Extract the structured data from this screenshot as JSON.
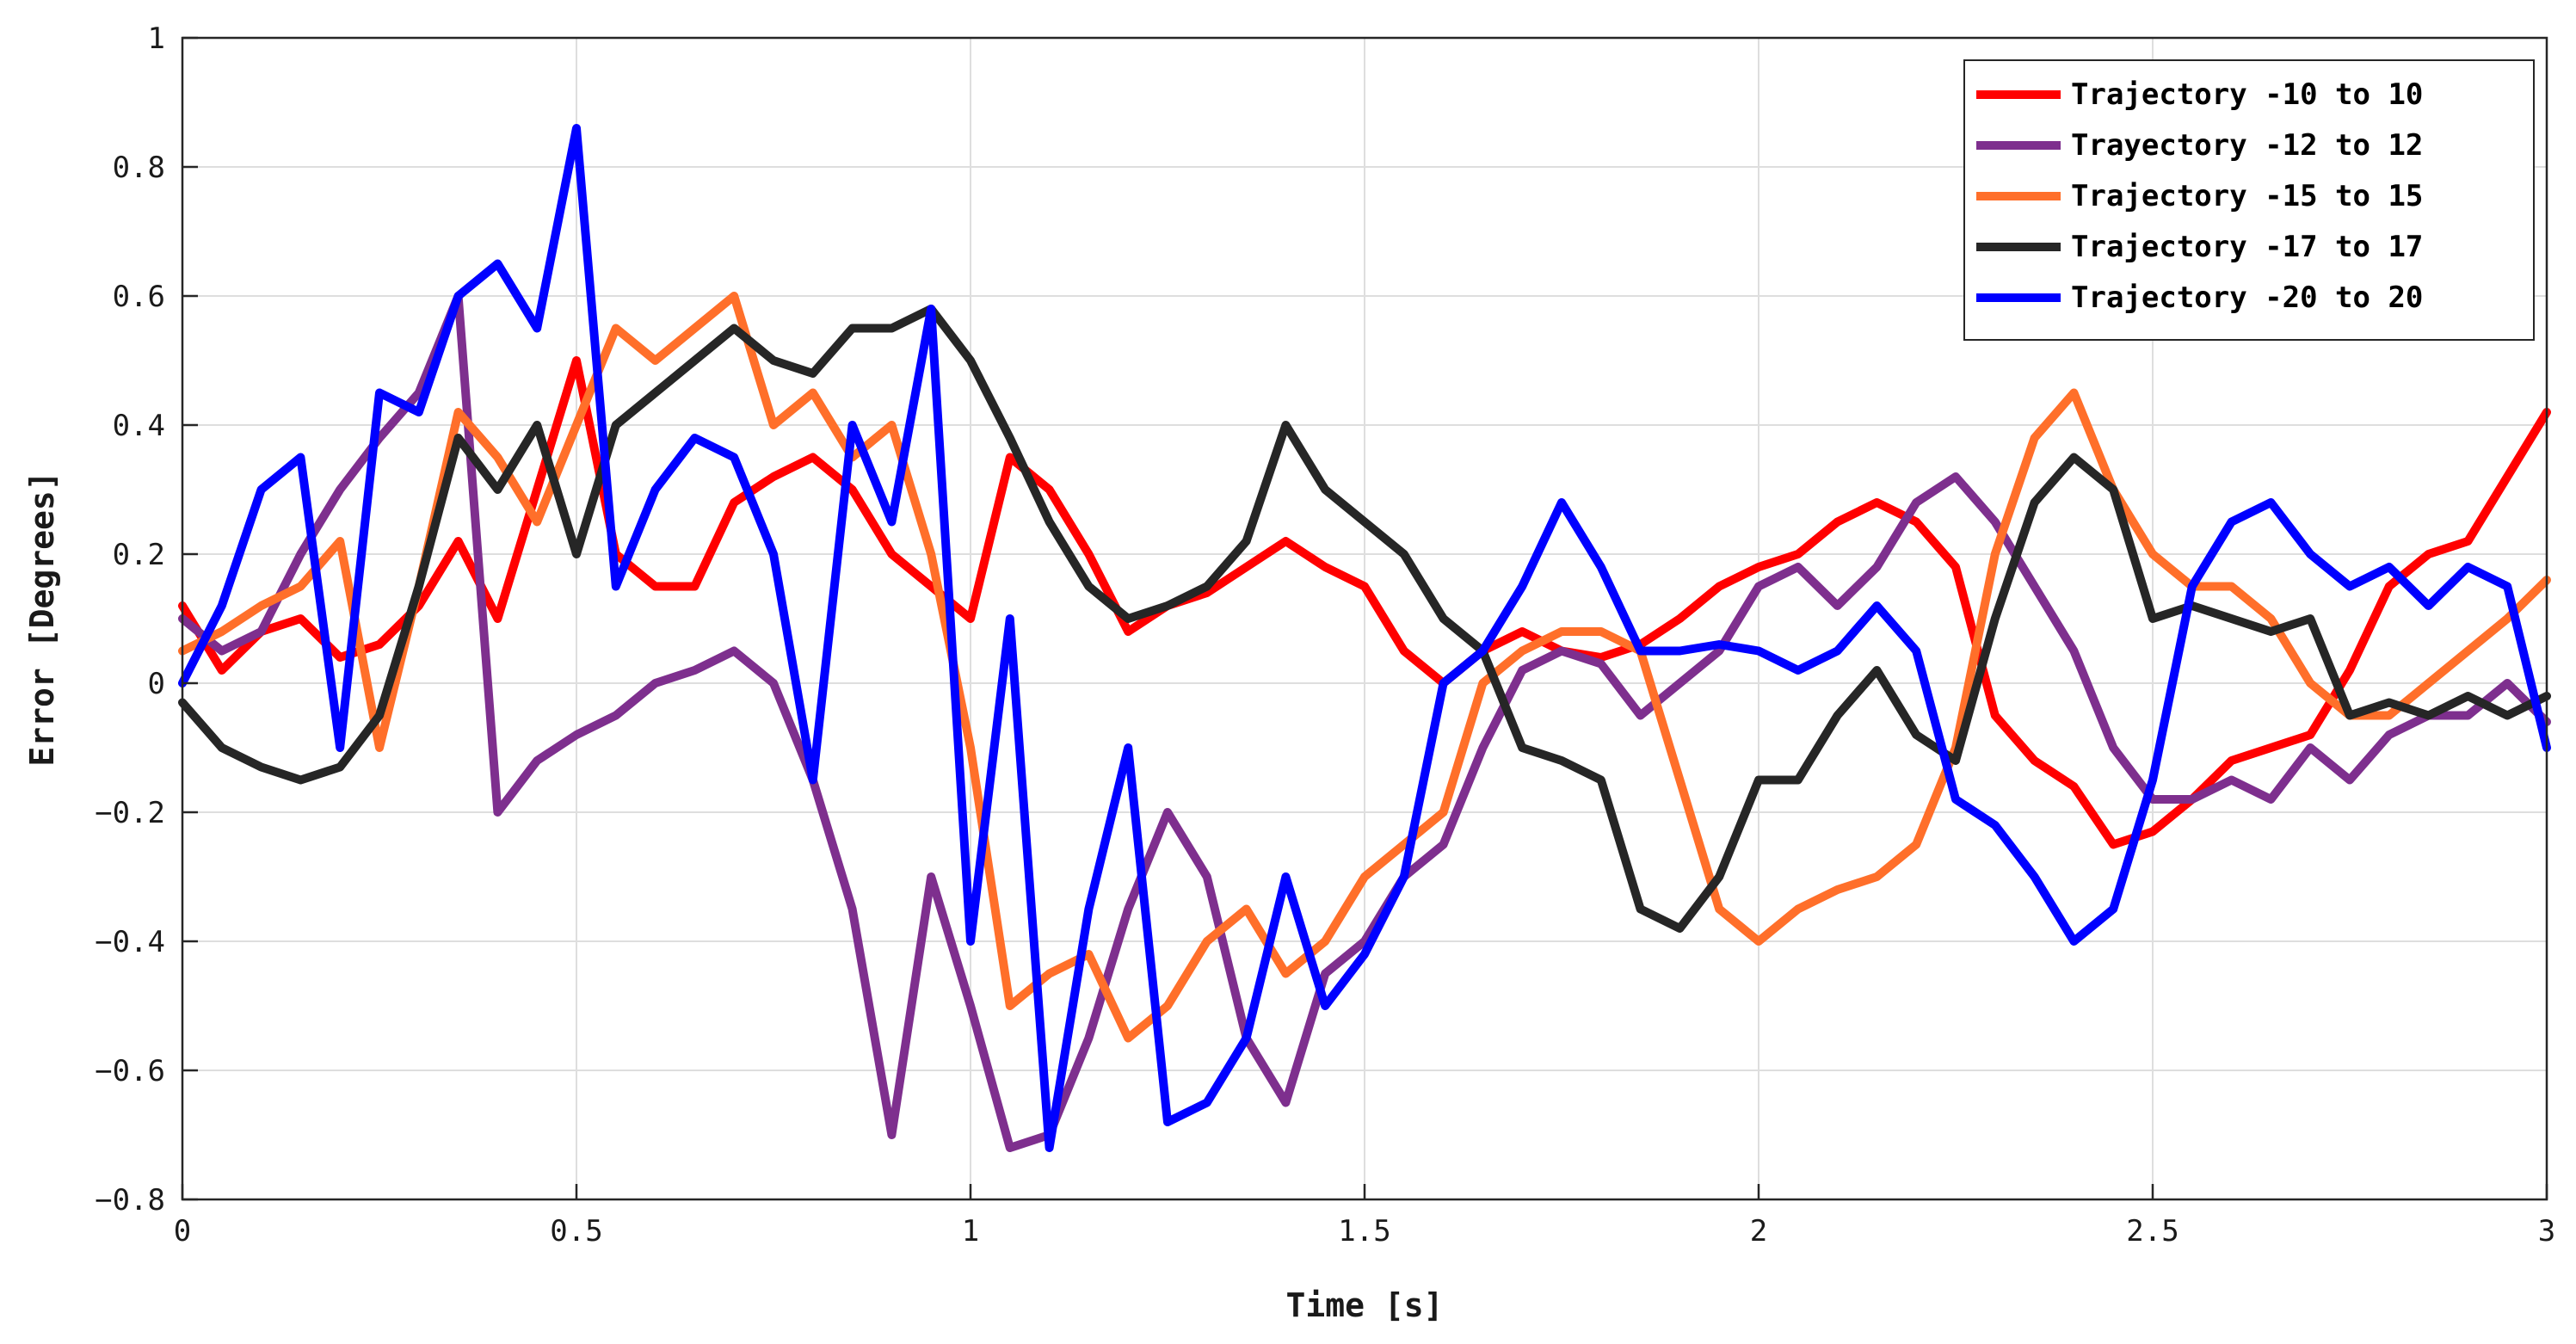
{
  "chart_data": {
    "type": "line",
    "title": "",
    "xlabel": "Time [s]",
    "ylabel": "Error [Degrees]",
    "xlim": [
      0,
      3
    ],
    "ylim": [
      -0.8,
      1
    ],
    "xticks": [
      0,
      0.5,
      1,
      1.5,
      2,
      2.5,
      3
    ],
    "xtick_labels": [
      "0",
      "0.5",
      "1",
      "1.5",
      "2",
      "2.5",
      "3"
    ],
    "yticks": [
      -0.8,
      -0.6,
      -0.4,
      -0.2,
      0,
      0.2,
      0.4,
      0.6,
      0.8,
      1
    ],
    "ytick_labels": [
      "−0.8",
      "−0.6",
      "−0.4",
      "−0.2",
      "0",
      "0.2",
      "0.4",
      "0.6",
      "0.8",
      "1"
    ],
    "grid": true,
    "legend_position": "top-right",
    "series": [
      {
        "name": "Trajectory -10 to 10",
        "color": "#ff0000",
        "x": [
          0,
          0.05,
          0.1,
          0.15,
          0.2,
          0.25,
          0.3,
          0.35,
          0.4,
          0.45,
          0.5,
          0.55,
          0.6,
          0.65,
          0.7,
          0.75,
          0.8,
          0.85,
          0.9,
          0.95,
          1,
          1.05,
          1.1,
          1.15,
          1.2,
          1.25,
          1.3,
          1.35,
          1.4,
          1.45,
          1.5,
          1.55,
          1.6,
          1.65,
          1.7,
          1.75,
          1.8,
          1.85,
          1.9,
          1.95,
          2,
          2.05,
          2.1,
          2.15,
          2.2,
          2.25,
          2.3,
          2.35,
          2.4,
          2.45,
          2.5,
          2.55,
          2.6,
          2.65,
          2.7,
          2.75,
          2.8,
          2.85,
          2.9,
          2.95,
          3
        ],
        "values": [
          0.12,
          0.02,
          0.08,
          0.1,
          0.04,
          0.06,
          0.12,
          0.22,
          0.1,
          0.3,
          0.5,
          0.2,
          0.15,
          0.15,
          0.28,
          0.32,
          0.35,
          0.3,
          0.2,
          0.15,
          0.1,
          0.35,
          0.3,
          0.2,
          0.08,
          0.12,
          0.14,
          0.18,
          0.22,
          0.18,
          0.15,
          0.05,
          0,
          0.05,
          0.08,
          0.05,
          0.04,
          0.06,
          0.1,
          0.15,
          0.18,
          0.2,
          0.25,
          0.28,
          0.25,
          0.18,
          -0.05,
          -0.12,
          -0.16,
          -0.25,
          -0.23,
          -0.18,
          -0.12,
          -0.1,
          -0.08,
          0.02,
          0.15,
          0.2,
          0.22,
          0.32,
          0.42
        ]
      },
      {
        "name": "Trayectory -12 to 12",
        "color": "#7e2f8e",
        "x": [
          0,
          0.05,
          0.1,
          0.15,
          0.2,
          0.25,
          0.3,
          0.35,
          0.4,
          0.45,
          0.5,
          0.55,
          0.6,
          0.65,
          0.7,
          0.75,
          0.8,
          0.85,
          0.9,
          0.95,
          1,
          1.05,
          1.1,
          1.15,
          1.2,
          1.25,
          1.3,
          1.35,
          1.4,
          1.45,
          1.5,
          1.55,
          1.6,
          1.65,
          1.7,
          1.75,
          1.8,
          1.85,
          1.9,
          1.95,
          2,
          2.05,
          2.1,
          2.15,
          2.2,
          2.25,
          2.3,
          2.35,
          2.4,
          2.45,
          2.5,
          2.55,
          2.6,
          2.65,
          2.7,
          2.75,
          2.8,
          2.85,
          2.9,
          2.95,
          3
        ],
        "values": [
          0.1,
          0.05,
          0.08,
          0.2,
          0.3,
          0.38,
          0.45,
          0.6,
          -0.2,
          -0.12,
          -0.08,
          -0.05,
          0,
          0.02,
          0.05,
          0,
          -0.15,
          -0.35,
          -0.7,
          -0.3,
          -0.5,
          -0.72,
          -0.7,
          -0.55,
          -0.35,
          -0.2,
          -0.3,
          -0.55,
          -0.65,
          -0.45,
          -0.4,
          -0.3,
          -0.25,
          -0.1,
          0.02,
          0.05,
          0.03,
          -0.05,
          0,
          0.05,
          0.15,
          0.18,
          0.12,
          0.18,
          0.28,
          0.32,
          0.25,
          0.15,
          0.05,
          -0.1,
          -0.18,
          -0.18,
          -0.15,
          -0.18,
          -0.1,
          -0.15,
          -0.08,
          -0.05,
          -0.05,
          0,
          -0.06
        ]
      },
      {
        "name": "Trajectory -15 to 15",
        "color": "#ff6f2a",
        "x": [
          0,
          0.05,
          0.1,
          0.15,
          0.2,
          0.25,
          0.3,
          0.35,
          0.4,
          0.45,
          0.5,
          0.55,
          0.6,
          0.65,
          0.7,
          0.75,
          0.8,
          0.85,
          0.9,
          0.95,
          1,
          1.05,
          1.1,
          1.15,
          1.2,
          1.25,
          1.3,
          1.35,
          1.4,
          1.45,
          1.5,
          1.55,
          1.6,
          1.65,
          1.7,
          1.75,
          1.8,
          1.85,
          1.9,
          1.95,
          2,
          2.05,
          2.1,
          2.15,
          2.2,
          2.25,
          2.3,
          2.35,
          2.4,
          2.45,
          2.5,
          2.55,
          2.6,
          2.65,
          2.7,
          2.75,
          2.8,
          2.85,
          2.9,
          2.95,
          3
        ],
        "values": [
          0.05,
          0.08,
          0.12,
          0.15,
          0.22,
          -0.1,
          0.15,
          0.42,
          0.35,
          0.25,
          0.4,
          0.55,
          0.5,
          0.55,
          0.6,
          0.4,
          0.45,
          0.35,
          0.4,
          0.2,
          -0.1,
          -0.5,
          -0.45,
          -0.42,
          -0.55,
          -0.5,
          -0.4,
          -0.35,
          -0.45,
          -0.4,
          -0.3,
          -0.25,
          -0.2,
          0,
          0.05,
          0.08,
          0.08,
          0.05,
          -0.15,
          -0.35,
          -0.4,
          -0.35,
          -0.32,
          -0.3,
          -0.25,
          -0.1,
          0.2,
          0.38,
          0.45,
          0.3,
          0.2,
          0.15,
          0.15,
          0.1,
          0,
          -0.05,
          -0.05,
          0,
          0.05,
          0.1,
          0.16
        ]
      },
      {
        "name": "Trajectory -17 to 17",
        "color": "#262626",
        "x": [
          0,
          0.05,
          0.1,
          0.15,
          0.2,
          0.25,
          0.3,
          0.35,
          0.4,
          0.45,
          0.5,
          0.55,
          0.6,
          0.65,
          0.7,
          0.75,
          0.8,
          0.85,
          0.9,
          0.95,
          1,
          1.05,
          1.1,
          1.15,
          1.2,
          1.25,
          1.3,
          1.35,
          1.4,
          1.45,
          1.5,
          1.55,
          1.6,
          1.65,
          1.7,
          1.75,
          1.8,
          1.85,
          1.9,
          1.95,
          2,
          2.05,
          2.1,
          2.15,
          2.2,
          2.25,
          2.3,
          2.35,
          2.4,
          2.45,
          2.5,
          2.55,
          2.6,
          2.65,
          2.7,
          2.75,
          2.8,
          2.85,
          2.9,
          2.95,
          3
        ],
        "values": [
          -0.03,
          -0.1,
          -0.13,
          -0.15,
          -0.13,
          -0.05,
          0.15,
          0.38,
          0.3,
          0.4,
          0.2,
          0.4,
          0.45,
          0.5,
          0.55,
          0.5,
          0.48,
          0.55,
          0.55,
          0.58,
          0.5,
          0.38,
          0.25,
          0.15,
          0.1,
          0.12,
          0.15,
          0.22,
          0.4,
          0.3,
          0.25,
          0.2,
          0.1,
          0.05,
          -0.1,
          -0.12,
          -0.15,
          -0.35,
          -0.38,
          -0.3,
          -0.15,
          -0.15,
          -0.05,
          0.02,
          -0.08,
          -0.12,
          0.1,
          0.28,
          0.35,
          0.3,
          0.1,
          0.12,
          0.1,
          0.08,
          0.1,
          -0.05,
          -0.03,
          -0.05,
          -0.02,
          -0.05,
          -0.02
        ]
      },
      {
        "name": "Trajectory -20 to 20",
        "color": "#0000ff",
        "x": [
          0,
          0.05,
          0.1,
          0.15,
          0.2,
          0.25,
          0.3,
          0.35,
          0.4,
          0.45,
          0.5,
          0.55,
          0.6,
          0.65,
          0.7,
          0.75,
          0.8,
          0.85,
          0.9,
          0.95,
          1,
          1.05,
          1.1,
          1.15,
          1.2,
          1.25,
          1.3,
          1.35,
          1.4,
          1.45,
          1.5,
          1.55,
          1.6,
          1.65,
          1.7,
          1.75,
          1.8,
          1.85,
          1.9,
          1.95,
          2,
          2.05,
          2.1,
          2.15,
          2.2,
          2.25,
          2.3,
          2.35,
          2.4,
          2.45,
          2.5,
          2.55,
          2.6,
          2.65,
          2.7,
          2.75,
          2.8,
          2.85,
          2.9,
          2.95,
          3
        ],
        "values": [
          0,
          0.12,
          0.3,
          0.35,
          -0.1,
          0.45,
          0.42,
          0.6,
          0.65,
          0.55,
          0.86,
          0.15,
          0.3,
          0.38,
          0.35,
          0.2,
          -0.15,
          0.4,
          0.25,
          0.58,
          -0.4,
          0.1,
          -0.72,
          -0.35,
          -0.1,
          -0.68,
          -0.65,
          -0.55,
          -0.3,
          -0.5,
          -0.42,
          -0.3,
          0,
          0.05,
          0.15,
          0.28,
          0.18,
          0.05,
          0.05,
          0.06,
          0.05,
          0.02,
          0.05,
          0.12,
          0.05,
          -0.18,
          -0.22,
          -0.3,
          -0.4,
          -0.35,
          -0.15,
          0.15,
          0.25,
          0.28,
          0.2,
          0.15,
          0.18,
          0.12,
          0.18,
          0.15,
          -0.1
        ]
      }
    ]
  }
}
